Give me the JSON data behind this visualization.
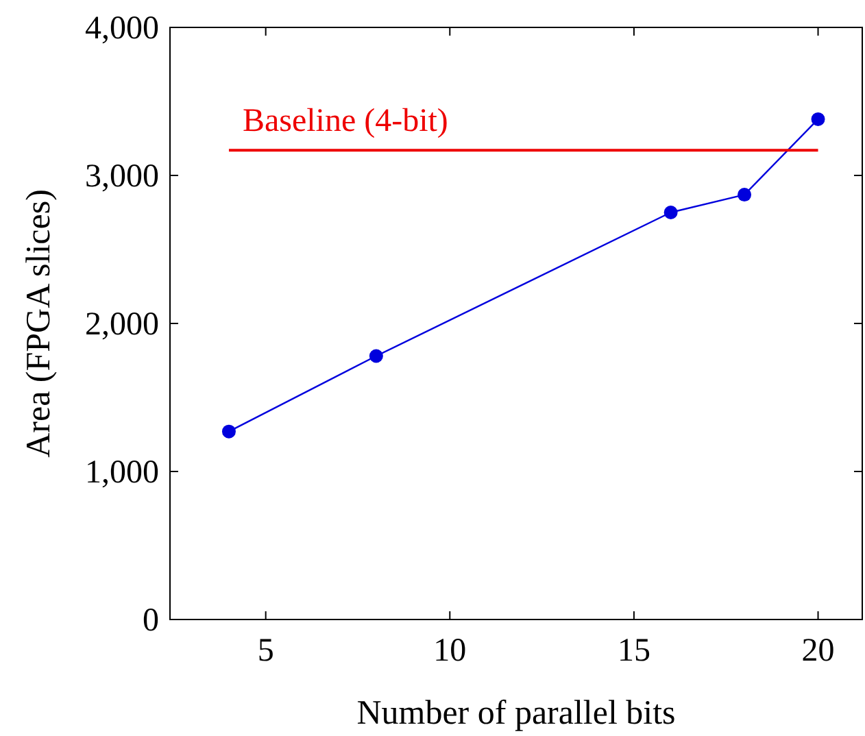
{
  "chart_data": {
    "type": "line",
    "xlabel": "Number of parallel bits",
    "ylabel": "Area (FPGA slices)",
    "xlim": [
      2.4,
      21.2
    ],
    "xticks": [
      5,
      10,
      15,
      20
    ],
    "ylim": [
      0,
      4000
    ],
    "yticks": [
      {
        "value": 0,
        "label": "0"
      },
      {
        "value": 1000,
        "label": "1,000"
      },
      {
        "value": 2000,
        "label": "2,000"
      },
      {
        "value": 3000,
        "label": "3,000"
      },
      {
        "value": 4000,
        "label": "4,000"
      }
    ],
    "grid": false,
    "series": [
      {
        "x": [
          4,
          8,
          16,
          18,
          20
        ],
        "values": [
          1270,
          1780,
          2750,
          2870,
          3380
        ],
        "color": "#0000dd",
        "marker": "circle"
      },
      {
        "name": "Baseline (4-bit)",
        "x": [
          4,
          20
        ],
        "values": [
          3170,
          3170
        ],
        "color": "#ee0000",
        "marker": "none"
      }
    ]
  }
}
